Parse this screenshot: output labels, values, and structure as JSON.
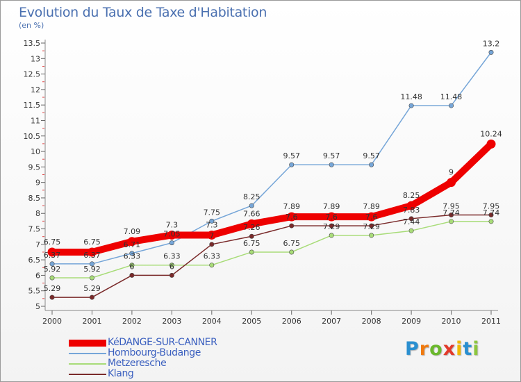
{
  "title": "Evolution du Taux de Taxe d'Habitation",
  "subtitle": "(en %)",
  "logo": {
    "text": "Proxiti",
    "letters": [
      {
        "ch": "P",
        "color": "#2a8fd0"
      },
      {
        "ch": "r",
        "color": "#f07a10"
      },
      {
        "ch": "o",
        "color": "#6ab82c"
      },
      {
        "ch": "x",
        "color": "#e23a2a"
      },
      {
        "ch": "i",
        "color": "#f0b800"
      },
      {
        "ch": "t",
        "color": "#2a8fd0"
      },
      {
        "ch": "i",
        "color": "#8cc63e"
      }
    ]
  },
  "chart_data": {
    "type": "line",
    "title": "Evolution du Taux de Taxe d'Habitation",
    "ylabel": "(en %)",
    "xlabel": "",
    "x": [
      "2000",
      "2001",
      "2002",
      "2003",
      "2004",
      "2005",
      "2006",
      "2007",
      "2008",
      "2009",
      "2010",
      "2011"
    ],
    "ylim": [
      5,
      13.5
    ],
    "yticks": [
      "5",
      "5.5",
      "6",
      "6.5",
      "7",
      "7.5",
      "8",
      "8.5",
      "9",
      "9.5",
      "10",
      "10.5",
      "11",
      "11.5",
      "12",
      "12.5",
      "13",
      "13.5"
    ],
    "grid": false,
    "legend_position": "bottom-left",
    "series": [
      {
        "name": "KéDANGE-SUR-CANNER",
        "color": "#ee0000",
        "values": [
          6.75,
          6.75,
          7.09,
          7.3,
          7.3,
          7.66,
          7.89,
          7.89,
          7.89,
          8.25,
          9,
          10.24
        ],
        "labels": [
          "6.75",
          "6.75",
          "7.09",
          "7.3",
          "7.3",
          "7.66",
          "7.89",
          "7.89",
          "7.89",
          "8.25",
          "9",
          "10.24"
        ]
      },
      {
        "name": "Hombourg-Budange",
        "color": "#76a6d8",
        "values": [
          6.37,
          6.37,
          6.71,
          7.05,
          7.75,
          8.25,
          9.57,
          9.57,
          9.57,
          11.48,
          11.48,
          13.2
        ],
        "labels": [
          "6.37",
          "6.37",
          "6.71",
          "7.05",
          "7.75",
          "8.25",
          "9.57",
          "9.57",
          "9.57",
          "11.48",
          "11.48",
          "13.2"
        ]
      },
      {
        "name": "Metzeresche",
        "color": "#a8dc78",
        "values": [
          5.92,
          5.92,
          6.33,
          6.33,
          6.33,
          6.75,
          6.75,
          7.29,
          7.29,
          7.44,
          7.74,
          7.74
        ],
        "labels": [
          "5.92",
          "5.92",
          "6.33",
          "6.33",
          "6.33",
          "6.75",
          "6.75",
          "7.29",
          "7.29",
          "7.44",
          "7.74",
          "7.74"
        ]
      },
      {
        "name": "Klang",
        "color": "#7a2a2a",
        "values": [
          5.29,
          5.29,
          6,
          6,
          7,
          7.26,
          7.6,
          7.6,
          7.6,
          7.83,
          7.95,
          7.95
        ],
        "labels": [
          "5.29",
          "5.29",
          "6",
          "6",
          "7",
          "7.26",
          "7.6",
          "7.6",
          "7.6",
          "7.83",
          "7.95",
          "7.95"
        ]
      }
    ]
  }
}
